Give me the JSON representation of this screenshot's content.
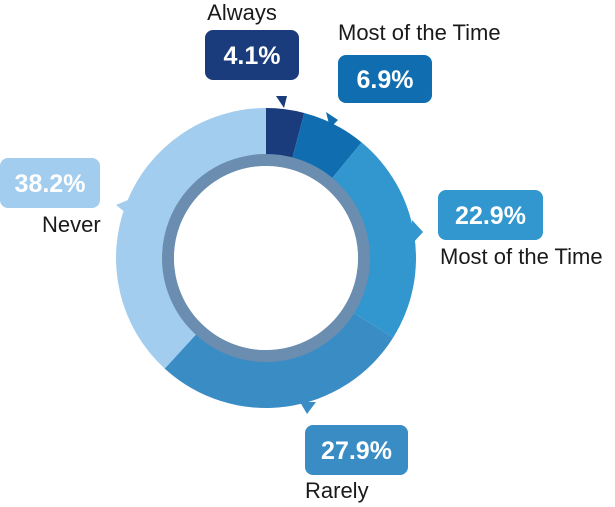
{
  "chart_data": {
    "type": "pie",
    "variant": "donut",
    "title": "",
    "slices": [
      {
        "label": "Always",
        "value": 4.1,
        "value_label": "4.1%",
        "color": "#1a3c7d"
      },
      {
        "label": "Most of the Time",
        "value": 6.9,
        "value_label": "6.9%",
        "color": "#0f6db0"
      },
      {
        "label": "Most of the Time",
        "value": 22.9,
        "value_label": "22.9%",
        "color": "#3296cf"
      },
      {
        "label": "Rarely",
        "value": 27.9,
        "value_label": "27.9%",
        "color": "#3a8cc5"
      },
      {
        "label": "Never",
        "value": 38.2,
        "value_label": "38.2%",
        "color": "#a2cdee"
      }
    ],
    "inner_ring_color": "#6a8db0",
    "start_angle_deg": 0,
    "direction": "clockwise"
  }
}
